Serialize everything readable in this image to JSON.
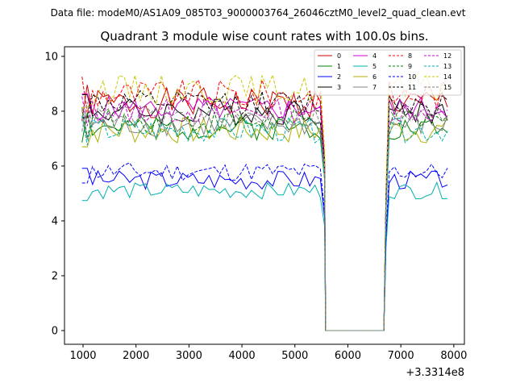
{
  "suptitle": "Data file: modeM0/AS1A09_085T03_9000003764_26046cztM0_level2_quad_clean.evt",
  "chart_data": {
    "type": "line",
    "title": "Quadrant 3 module wise count rates with 100.0s bins.",
    "xlabel": "",
    "ylabel": "",
    "x_offset_label": "+3.3314e8",
    "xlim": [
      650,
      8200
    ],
    "ylim": [
      -0.5,
      10.35
    ],
    "x_ticks": [
      1000,
      2000,
      3000,
      4000,
      5000,
      6000,
      7000,
      8000
    ],
    "x_tick_labels": [
      "1000",
      "2000",
      "3000",
      "4000",
      "5000",
      "6000",
      "7000",
      "8000"
    ],
    "y_ticks": [
      0,
      2,
      4,
      6,
      8,
      10
    ],
    "y_tick_labels": [
      "0",
      "2",
      "4",
      "6",
      "8",
      "10"
    ],
    "grid": false,
    "legend_placement": "top-right",
    "segments": [
      {
        "x_start": 980,
        "x_end": 5520,
        "step": 100
      },
      {
        "x_start": 5580,
        "x_end": 6680,
        "step": 100,
        "zero": true
      },
      {
        "x_start": 6780,
        "x_end": 7880,
        "step": 100
      }
    ],
    "series": [
      {
        "name": "0",
        "color": "#d00000",
        "dash": "solid",
        "level": 8.3,
        "amp": 0.55,
        "seed": 1
      },
      {
        "name": "1",
        "color": "#008000",
        "dash": "solid",
        "level": 7.4,
        "amp": 0.45,
        "seed": 2
      },
      {
        "name": "2",
        "color": "#0000ff",
        "dash": "solid",
        "level": 5.5,
        "amp": 0.35,
        "seed": 3
      },
      {
        "name": "3",
        "color": "#000000",
        "dash": "solid",
        "level": 8.0,
        "amp": 0.5,
        "seed": 4
      },
      {
        "name": "4",
        "color": "#cc00cc",
        "dash": "solid",
        "level": 8.1,
        "amp": 0.45,
        "seed": 5
      },
      {
        "name": "5",
        "color": "#00b0b0",
        "dash": "solid",
        "level": 5.1,
        "amp": 0.3,
        "seed": 6
      },
      {
        "name": "6",
        "color": "#b0b000",
        "dash": "solid",
        "level": 7.3,
        "amp": 0.5,
        "seed": 7
      },
      {
        "name": "7",
        "color": "#808080",
        "dash": "solid",
        "level": 7.5,
        "amp": 0.45,
        "seed": 8
      },
      {
        "name": "8",
        "color": "#ff0000",
        "dash": "dashed",
        "level": 8.6,
        "amp": 0.55,
        "seed": 9
      },
      {
        "name": "9",
        "color": "#008000",
        "dash": "dashed",
        "level": 7.6,
        "amp": 0.45,
        "seed": 10
      },
      {
        "name": "10",
        "color": "#0000ff",
        "dash": "dashed",
        "level": 5.8,
        "amp": 0.35,
        "seed": 11
      },
      {
        "name": "11",
        "color": "#000000",
        "dash": "dashed",
        "level": 8.3,
        "amp": 0.45,
        "seed": 12
      },
      {
        "name": "12",
        "color": "#cc00cc",
        "dash": "dashed",
        "level": 8.0,
        "amp": 0.45,
        "seed": 13
      },
      {
        "name": "13",
        "color": "#00b0b0",
        "dash": "dashed",
        "level": 7.3,
        "amp": 0.45,
        "seed": 14
      },
      {
        "name": "14",
        "color": "#c8c800",
        "dash": "dashed",
        "level": 8.8,
        "amp": 0.55,
        "seed": 15
      },
      {
        "name": "15",
        "color": "#808080",
        "dash": "dashed",
        "level": 7.8,
        "amp": 0.45,
        "seed": 16
      }
    ]
  }
}
